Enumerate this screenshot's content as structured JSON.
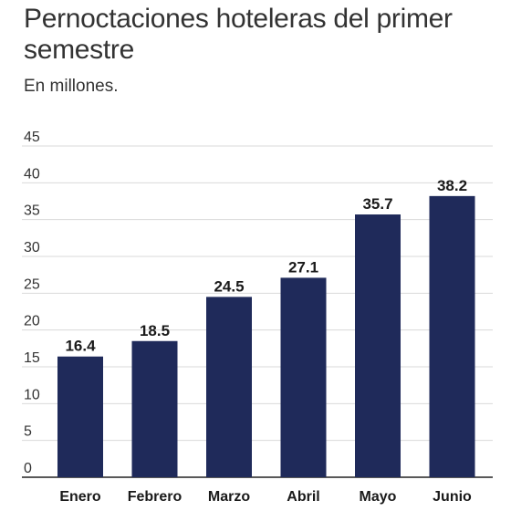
{
  "header": {
    "title": "Pernoctaciones hoteleras del primer semestre",
    "subtitle": "En millones."
  },
  "chart_data": {
    "type": "bar",
    "title": "Pernoctaciones hoteleras del primer semestre",
    "subtitle": "En millones.",
    "categories": [
      "Enero",
      "Febrero",
      "Marzo",
      "Abril",
      "Mayo",
      "Junio"
    ],
    "values": [
      16.4,
      18.5,
      24.5,
      27.1,
      35.7,
      38.2
    ],
    "data_labels": [
      "16.4",
      "18.5",
      "24.5",
      "27.1",
      "35.7",
      "38.2"
    ],
    "y_ticks": [
      "0",
      "5",
      "10",
      "15",
      "20",
      "25",
      "30",
      "35",
      "40",
      "45"
    ],
    "ylim": [
      0,
      45
    ],
    "grid": true,
    "bar_color": "#1f2a5a",
    "grid_color": "#d9d9d9"
  }
}
